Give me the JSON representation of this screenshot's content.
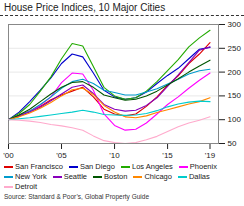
{
  "chart_data": {
    "type": "line",
    "title": "House Price Indices, 10 Major Cities",
    "source": "Source: Standard & Poor’s, Global Property Guide",
    "x": [
      2000,
      2001,
      2002,
      2003,
      2004,
      2005,
      2006,
      2007,
      2008,
      2009,
      2010,
      2011,
      2012,
      2013,
      2014,
      2015,
      2016,
      2017,
      2018,
      2019
    ],
    "series": [
      {
        "name": "San Francisco",
        "color": "#dd0000",
        "values": [
          100,
          109,
          118,
          128,
          142,
          152,
          160,
          168,
          148,
          122,
          112,
          108,
          112,
          128,
          148,
          172,
          192,
          218,
          238,
          262
        ]
      },
      {
        "name": "San Diego",
        "color": "#0000cc",
        "values": [
          100,
          116,
          138,
          162,
          188,
          218,
          238,
          232,
          198,
          162,
          148,
          143,
          146,
          158,
          176,
          193,
          208,
          228,
          248,
          252
        ]
      },
      {
        "name": "Los Angeles",
        "color": "#22aa00",
        "values": [
          100,
          113,
          132,
          160,
          190,
          228,
          260,
          255,
          212,
          168,
          150,
          143,
          146,
          160,
          180,
          203,
          226,
          253,
          272,
          288
        ]
      },
      {
        "name": "Phoenix",
        "color": "#ff00ff",
        "values": [
          100,
          108,
          118,
          130,
          148,
          178,
          198,
          196,
          162,
          112,
          88,
          78,
          80,
          93,
          112,
          132,
          148,
          166,
          183,
          198
        ]
      },
      {
        "name": "New York",
        "color": "#009bcc",
        "values": [
          100,
          108,
          118,
          132,
          148,
          166,
          180,
          185,
          176,
          162,
          157,
          152,
          152,
          158,
          165,
          175,
          185,
          196,
          203,
          206
        ]
      },
      {
        "name": "Seattle",
        "color": "#8800bb",
        "values": [
          100,
          108,
          116,
          126,
          140,
          154,
          168,
          173,
          155,
          132,
          122,
          118,
          120,
          130,
          146,
          170,
          194,
          220,
          246,
          253
        ]
      },
      {
        "name": "Boston",
        "color": "#005500",
        "values": [
          100,
          110,
          122,
          138,
          154,
          168,
          178,
          180,
          168,
          152,
          146,
          141,
          143,
          150,
          160,
          173,
          186,
          200,
          213,
          225
        ]
      },
      {
        "name": "Chicago",
        "color": "#ff8800",
        "values": [
          100,
          106,
          114,
          124,
          136,
          150,
          163,
          166,
          153,
          130,
          116,
          106,
          104,
          108,
          115,
          121,
          127,
          133,
          138,
          146
        ]
      },
      {
        "name": "Dallas",
        "color": "#00cccc",
        "values": [
          100,
          102,
          104,
          107,
          110,
          113,
          116,
          120,
          116,
          111,
          110,
          109,
          110,
          113,
          119,
          127,
          133,
          137,
          139,
          138
        ]
      },
      {
        "name": "Detroit",
        "color": "#ffaacc",
        "values": [
          100,
          99,
          97,
          94,
          90,
          87,
          83,
          78,
          66,
          56,
          52,
          50,
          52,
          58,
          65,
          75,
          85,
          93,
          99,
          106
        ]
      }
    ],
    "xlim": [
      2000,
      2019.8
    ],
    "xticks": [
      {
        "value": 2000,
        "label": "'00"
      },
      {
        "value": 2005,
        "label": "'05"
      },
      {
        "value": 2010,
        "label": "'10"
      },
      {
        "value": 2015,
        "label": "'15"
      },
      {
        "value": 2019,
        "label": "'19"
      }
    ],
    "ylim": [
      50,
      300
    ],
    "yticks": [
      50,
      100,
      150,
      200,
      250,
      300
    ],
    "grid": true,
    "legend": "bottom"
  }
}
